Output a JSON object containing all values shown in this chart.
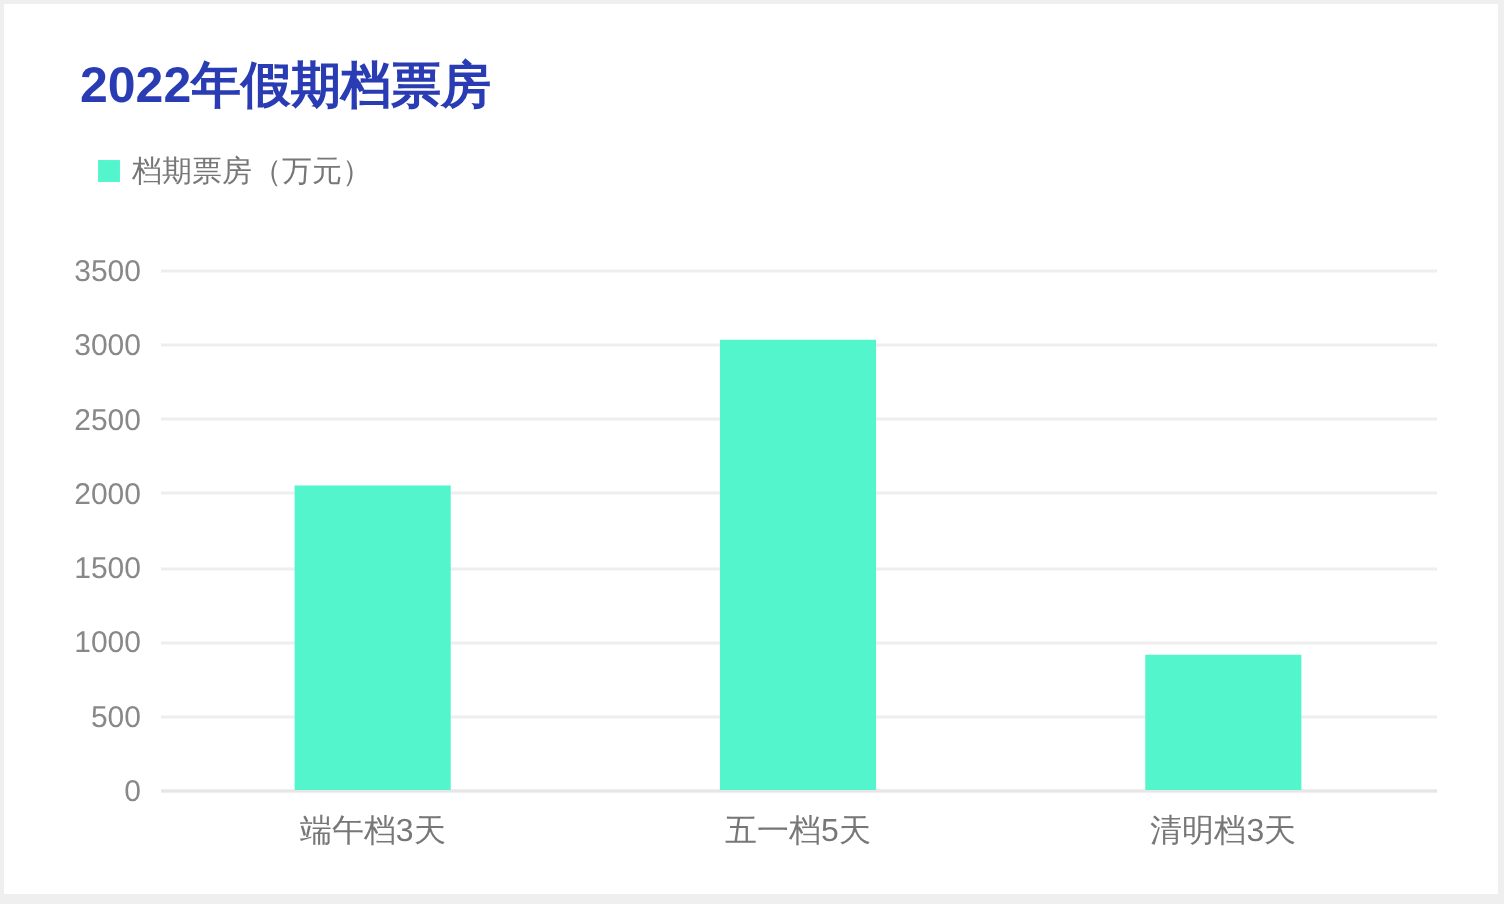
{
  "chart_data": {
    "type": "bar",
    "title": "2022年假期档票房",
    "categories": [
      "端午档3天",
      "五一档5天",
      "清明档3天"
    ],
    "series": [
      {
        "name": "档期票房（万元）",
        "color": "#52f5cc",
        "values": [
          2050,
          3030,
          910
        ]
      }
    ],
    "ylim": [
      0,
      3500
    ],
    "yticks": [
      0,
      500,
      1000,
      1500,
      2000,
      2500,
      3000,
      3500
    ],
    "grid": "y",
    "legend": "top left"
  }
}
